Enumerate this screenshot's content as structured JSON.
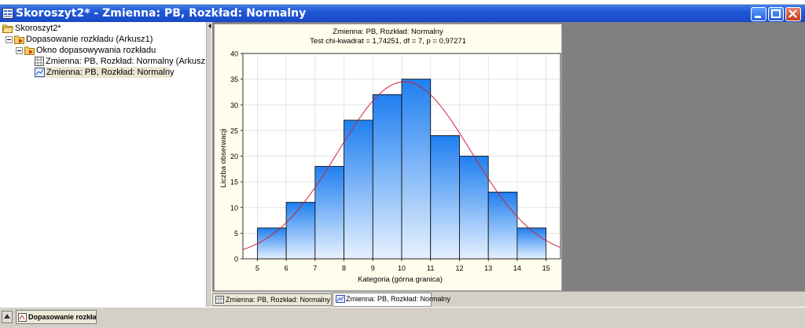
{
  "window": {
    "title": "Skoroszyt2* - Zmienna:  PB, Rozkład: Normalny"
  },
  "tree": {
    "root": "Skoroszyt2*",
    "analysis": "Dopasowanie rozkładu (Arkusz1)",
    "window_node": "Okno dopasowywania rozkładu",
    "item_sheet": "Zmienna: PB, Rozkład: Normalny (Arkusz1)",
    "item_graph": "Zmienna:  PB, Rozkład: Normalny"
  },
  "tabs": [
    {
      "label": "Zmienna: PB, Rozkład: Normalny (Arkusz1)"
    },
    {
      "label": "Zmienna:  PB, Rozkład: Normalny"
    }
  ],
  "taskbar": {
    "item": "Dopasowanie rozkład..."
  },
  "colors": {
    "bar_top": "#1f7ff0",
    "bar_bottom": "#e6f1ff",
    "curve": "#cc2233",
    "titlebar": "#2158d8"
  },
  "chart_data": {
    "type": "bar",
    "title": "Zmienna:  PB, Rozkład: Normalny",
    "subtitle": "Test chi-kwadrat = 1,74251, df = 7, p = 0,97271",
    "xlabel": "Kategoria (górna granica)",
    "ylabel": "Liczba obserwacji",
    "x_ticks": [
      5,
      6,
      7,
      8,
      9,
      10,
      11,
      12,
      13,
      14,
      15
    ],
    "bins": [
      {
        "from": 5,
        "to": 6,
        "value": 6
      },
      {
        "from": 6,
        "to": 7,
        "value": 11
      },
      {
        "from": 7,
        "to": 8,
        "value": 18
      },
      {
        "from": 8,
        "to": 9,
        "value": 27
      },
      {
        "from": 9,
        "to": 10,
        "value": 32
      },
      {
        "from": 10,
        "to": 11,
        "value": 35
      },
      {
        "from": 11,
        "to": 12,
        "value": 24
      },
      {
        "from": 12,
        "to": 13,
        "value": 20
      },
      {
        "from": 13,
        "to": 14,
        "value": 13
      },
      {
        "from": 14,
        "to": 15,
        "value": 6
      }
    ],
    "xlim": [
      4.5,
      15.5
    ],
    "ylim": [
      0,
      40
    ],
    "y_ticks": [
      0,
      5,
      10,
      15,
      20,
      25,
      30,
      35,
      40
    ],
    "grid": true,
    "fitted_curve": {
      "type": "normal",
      "mean": 10.1,
      "sd": 2.3,
      "peak": 34.5
    }
  }
}
